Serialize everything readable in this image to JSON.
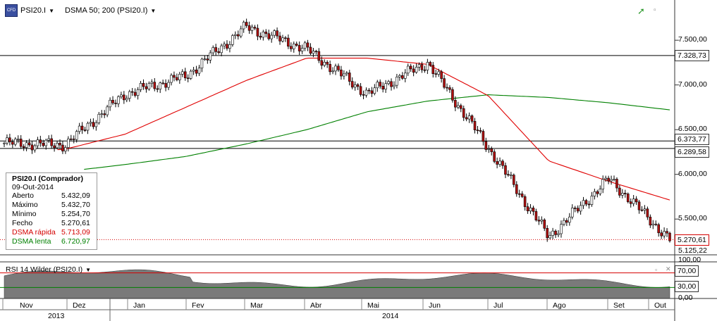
{
  "header": {
    "symbol": "PSI20.I",
    "indicator": "DSMA 50; 200 (PSI20.I)",
    "logo_text": "CFD"
  },
  "info_panel": {
    "title": "PSI20.I (Comprador)",
    "date": "09-Out-2014",
    "rows": [
      {
        "label": "Aberto",
        "value": "5.432,09",
        "color": "#000000"
      },
      {
        "label": "Máximo",
        "value": "5.432,70",
        "color": "#000000"
      },
      {
        "label": "Mínimo",
        "value": "5.254,70",
        "color": "#000000"
      },
      {
        "label": "Fecho",
        "value": "5.270,61",
        "color": "#000000"
      },
      {
        "label": "DSMA rápida",
        "value": "5.713,09",
        "color": "#d40000"
      },
      {
        "label": "DSMA lenta",
        "value": "6.720,97",
        "color": "#008000"
      }
    ]
  },
  "price_axis": {
    "ticks": [
      "7.500,00",
      "7.000,00",
      "6.500,00",
      "6.000,00",
      "5.500,00"
    ],
    "tick_values": [
      7500,
      7000,
      6500,
      6000,
      5500
    ],
    "range": [
      5100,
      7950
    ]
  },
  "horizontal_lines": [
    {
      "value": 7328.73,
      "label": "7.328,73"
    },
    {
      "value": 6373.77,
      "label": "6.373,77"
    },
    {
      "value": 6289.58,
      "label": "6.289,58"
    }
  ],
  "current_price": {
    "value": 5270.61,
    "label": "5.270,61"
  },
  "low_marker": {
    "value": 5125.22,
    "label": "5.125,22"
  },
  "rsi": {
    "title": "RSI 14 Wilder (PSI20.I)",
    "ticks": [
      "100,00",
      "0,00"
    ],
    "level_labels": [
      "70,00",
      "30,00"
    ],
    "levels": [
      70,
      30
    ],
    "fill_color": "#7a7a7a"
  },
  "time_axis": {
    "months": [
      "Nov",
      "Dez",
      "Jan",
      "Fev",
      "Mar",
      "Abr",
      "Mai",
      "Jun",
      "Jul",
      "Ago",
      "Set",
      "Out"
    ],
    "years": [
      "2013",
      "2014"
    ]
  },
  "colors": {
    "up_candle": "#ffffff",
    "down_candle": "#b01010",
    "fast_ma": "#e00000",
    "slow_ma": "#008000",
    "hline": "#000000"
  },
  "chart_data": {
    "type": "line",
    "title": "PSI20.I",
    "series": [
      {
        "name": "PSI20.I",
        "x": [
          "Nov 2013",
          "Dez 2013",
          "Jan 2014",
          "Fev 2014",
          "Mar 2014",
          "Abr 2014",
          "Mai 2014",
          "Jun 2014",
          "Jul 2014",
          "Ago 2014",
          "Set 2014",
          "Out 2014"
        ],
        "values": [
          6350,
          6330,
          6900,
          7100,
          7650,
          7400,
          6900,
          7250,
          6300,
          5300,
          5950,
          5270
        ]
      },
      {
        "name": "DSMA rápida",
        "values": [
          6250,
          6280,
          6450,
          6750,
          7050,
          7300,
          7300,
          7230,
          6880,
          6150,
          5920,
          5713
        ]
      },
      {
        "name": "DSMA lenta",
        "values": [
          5980,
          6030,
          6110,
          6200,
          6340,
          6500,
          6700,
          6820,
          6890,
          6860,
          6800,
          6721
        ]
      }
    ],
    "ylim": [
      5100,
      7950
    ]
  }
}
